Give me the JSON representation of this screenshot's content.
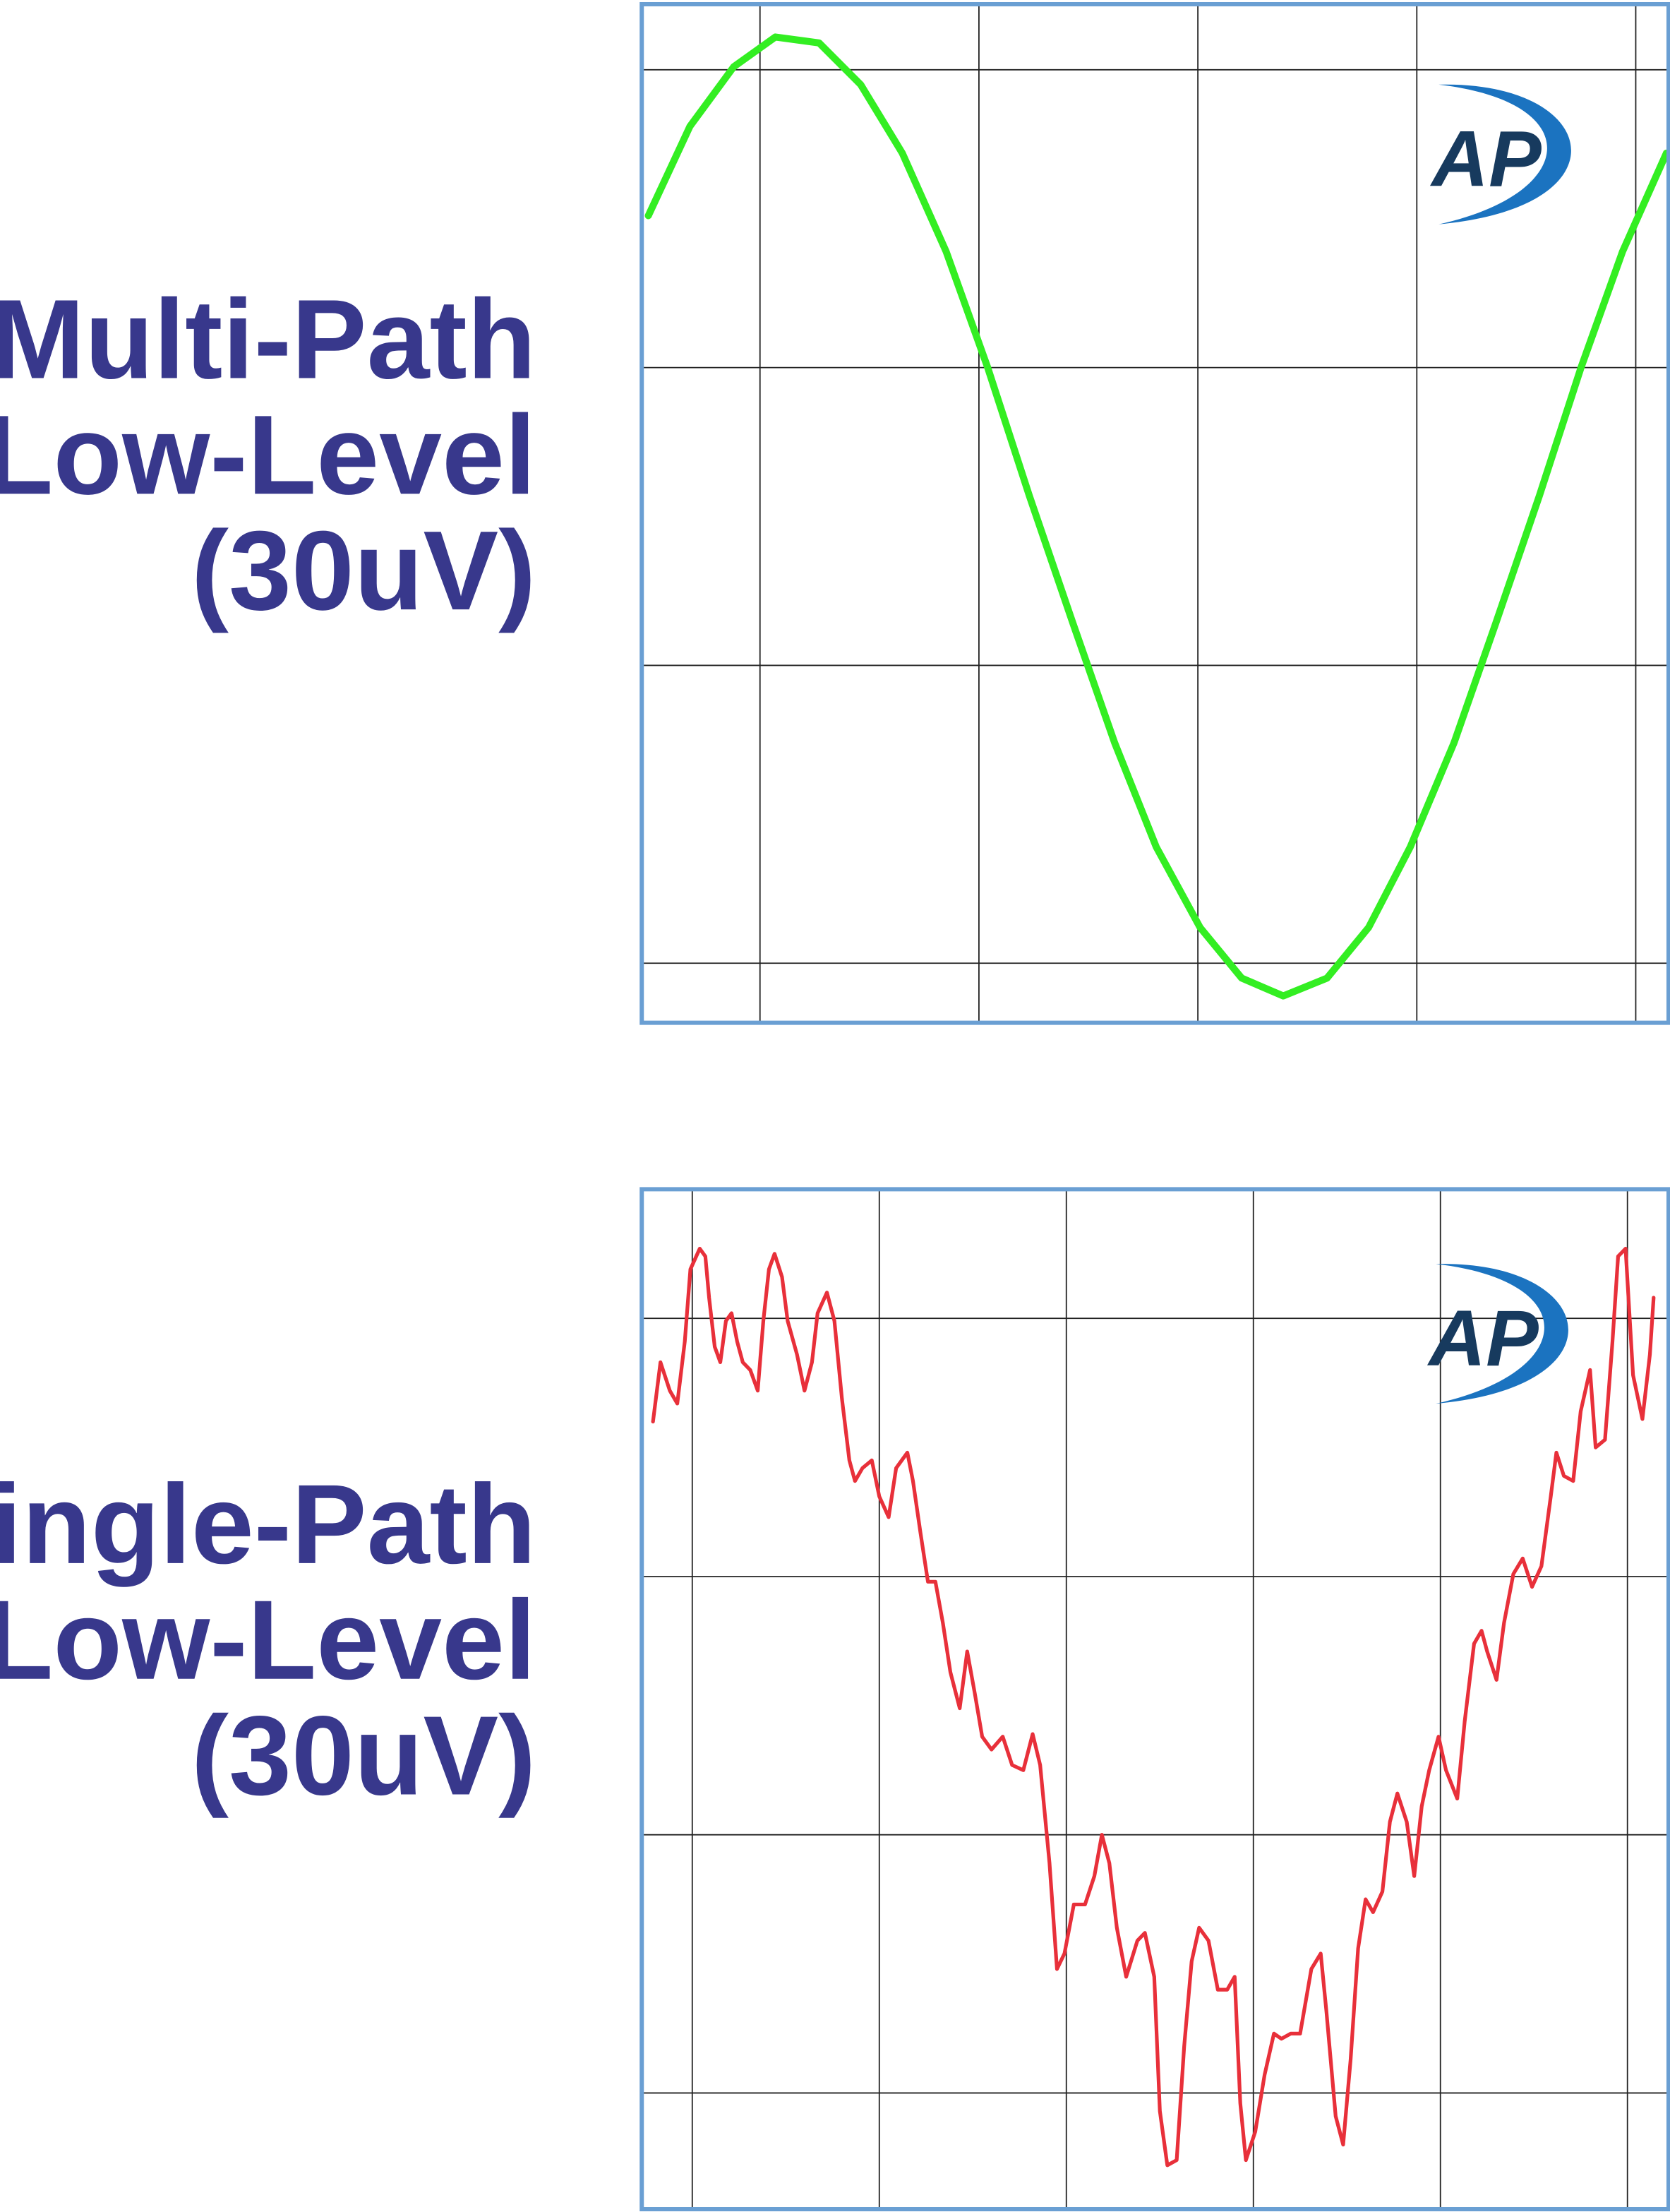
{
  "chart_data": [
    {
      "type": "line",
      "title_lines": [
        "Multi-Path",
        "Low-Level",
        "(30uV)"
      ],
      "logo": "AP",
      "xlim": [
        -0.54,
        4.15
      ],
      "ylim": [
        -2.2,
        1.22
      ],
      "xticks": [
        0,
        1,
        2,
        3,
        4
      ],
      "yticks": [
        -2,
        -1,
        0,
        1
      ],
      "grid": true,
      "series": [
        {
          "color": "#33ee22",
          "x": [
            -0.51,
            -0.32,
            -0.12,
            0.07,
            0.27,
            0.46,
            0.65,
            0.85,
            1.04,
            1.23,
            1.43,
            1.62,
            1.81,
            2.01,
            2.2,
            2.39,
            2.59,
            2.78,
            2.97,
            3.17,
            3.36,
            3.56,
            3.75,
            3.94,
            4.14
          ],
          "values": [
            0.51,
            0.81,
            1.01,
            1.11,
            1.09,
            0.95,
            0.72,
            0.39,
            0.0,
            -0.43,
            -0.86,
            -1.26,
            -1.61,
            -1.88,
            -2.05,
            -2.11,
            -2.05,
            -1.88,
            -1.61,
            -1.26,
            -0.86,
            -0.43,
            0.0,
            0.39,
            0.72
          ]
        }
      ]
    },
    {
      "type": "line",
      "title_lines": [
        "Single-Path",
        "Low-Level",
        "(30uV)"
      ],
      "logo": "AP",
      "xlim": [
        -0.27,
        5.22
      ],
      "ylim": [
        -2.45,
        1.5
      ],
      "xticks": [
        0,
        1,
        2,
        3,
        4,
        5
      ],
      "yticks": [
        -2,
        -1,
        0,
        1
      ],
      "grid": true,
      "series": [
        {
          "color": "#e8303a",
          "x": [
            -0.21,
            -0.17,
            -0.12,
            -0.08,
            -0.04,
            -0.01,
            0.04,
            0.07,
            0.09,
            0.12,
            0.15,
            0.18,
            0.21,
            0.24,
            0.27,
            0.31,
            0.35,
            0.38,
            0.41,
            0.44,
            0.48,
            0.51,
            0.56,
            0.6,
            0.64,
            0.67,
            0.72,
            0.76,
            0.8,
            0.84,
            0.87,
            0.91,
            0.96,
            1.0,
            1.05,
            1.09,
            1.15,
            1.18,
            1.22,
            1.26,
            1.3,
            1.34,
            1.38,
            1.43,
            1.47,
            1.51,
            1.55,
            1.6,
            1.66,
            1.71,
            1.77,
            1.82,
            1.86,
            1.91,
            1.95,
            1.99,
            2.04,
            2.1,
            2.15,
            2.19,
            2.23,
            2.27,
            2.32,
            2.38,
            2.42,
            2.47,
            2.5,
            2.54,
            2.59,
            2.63,
            2.67,
            2.71,
            2.76,
            2.81,
            2.86,
            2.9,
            2.93,
            2.96,
            3.01,
            3.06,
            3.11,
            3.15,
            3.2,
            3.25,
            3.31,
            3.36,
            3.39,
            3.44,
            3.48,
            3.52,
            3.56,
            3.6,
            3.64,
            3.69,
            3.73,
            3.77,
            3.82,
            3.86,
            3.9,
            3.94,
            3.99,
            4.03,
            4.09,
            4.13,
            4.18,
            4.22,
            4.25,
            4.3,
            4.34,
            4.39,
            4.44,
            4.49,
            4.54,
            4.59,
            4.62,
            4.66,
            4.71,
            4.75,
            4.8,
            4.83,
            4.88,
            4.92,
            4.95,
            4.99,
            5.03,
            5.08,
            5.12,
            5.14
          ],
          "values": [
            0.6,
            0.83,
            0.72,
            0.67,
            0.91,
            1.19,
            1.27,
            1.24,
            1.08,
            0.89,
            0.83,
            0.99,
            1.02,
            0.91,
            0.83,
            0.8,
            0.72,
            0.99,
            1.19,
            1.25,
            1.16,
            0.99,
            0.86,
            0.72,
            0.83,
            1.02,
            1.1,
            0.99,
            0.69,
            0.45,
            0.37,
            0.42,
            0.45,
            0.31,
            0.23,
            0.42,
            0.48,
            0.37,
            0.17,
            -0.02,
            -0.02,
            -0.18,
            -0.37,
            -0.51,
            -0.29,
            -0.45,
            -0.62,
            -0.67,
            -0.62,
            -0.73,
            -0.75,
            -0.61,
            -0.73,
            -1.11,
            -1.52,
            -1.46,
            -1.27,
            -1.27,
            -1.16,
            -1.0,
            -1.11,
            -1.36,
            -1.55,
            -1.41,
            -1.38,
            -1.55,
            -2.07,
            -2.28,
            -2.26,
            -1.82,
            -1.49,
            -1.36,
            -1.41,
            -1.6,
            -1.6,
            -1.55,
            -2.04,
            -2.26,
            -2.15,
            -1.93,
            -1.77,
            -1.79,
            -1.77,
            -1.77,
            -1.52,
            -1.46,
            -1.68,
            -2.09,
            -2.2,
            -1.87,
            -1.44,
            -1.25,
            -1.3,
            -1.22,
            -0.95,
            -0.84,
            -0.95,
            -1.16,
            -0.89,
            -0.75,
            -0.62,
            -0.75,
            -0.86,
            -0.56,
            -0.26,
            -0.21,
            -0.29,
            -0.4,
            -0.18,
            0.01,
            0.07,
            -0.04,
            0.04,
            0.31,
            0.48,
            0.39,
            0.37,
            0.64,
            0.8,
            0.5,
            0.53,
            0.91,
            1.24,
            1.27,
            0.78,
            0.61,
            0.86,
            1.08
          ]
        }
      ]
    }
  ]
}
